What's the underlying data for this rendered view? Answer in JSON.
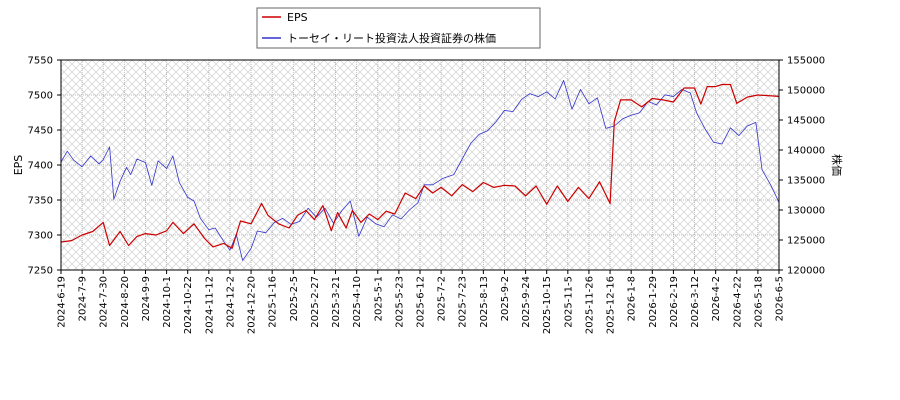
{
  "chart_data": {
    "type": "line",
    "grid": true,
    "legend_position": "top-left",
    "x_tick_labels": [
      "2024-6-19",
      "2024-7-9",
      "2024-7-30",
      "2024-8-20",
      "2024-9-9",
      "2024-10-1",
      "2024-10-22",
      "2024-11-12",
      "2024-12-2",
      "2024-12-20",
      "2025-1-16",
      "2025-2-5",
      "2025-2-27",
      "2025-3-21",
      "2025-4-10",
      "2025-5-1",
      "2025-5-23",
      "2025-6-12",
      "2025-7-2",
      "2025-7-23",
      "2025-8-13",
      "2025-9-2",
      "2025-9-24",
      "2025-10-15",
      "2025-11-5",
      "2025-11-26",
      "2025-12-16",
      "2026-1-8",
      "2026-1-29",
      "2026-2-19",
      "2026-3-12",
      "2026-4-2",
      "2026-4-22",
      "2026-5-18",
      "2026-6-5"
    ],
    "y_left": {
      "label": "EPS",
      "range": [
        7250,
        7550
      ],
      "ticks": [
        7250,
        7300,
        7350,
        7400,
        7450,
        7500,
        7550
      ]
    },
    "y_right": {
      "label": "株価",
      "range": [
        120000,
        155000
      ],
      "ticks": [
        120000,
        125000,
        130000,
        135000,
        140000,
        145000,
        150000,
        155000
      ]
    },
    "series": [
      {
        "name": "EPS",
        "color": "#cc0000",
        "axis": "left",
        "points": [
          [
            0,
            7290
          ],
          [
            0.5,
            7292
          ],
          [
            1,
            7300
          ],
          [
            1.5,
            7305
          ],
          [
            2,
            7318
          ],
          [
            2.3,
            7285
          ],
          [
            2.8,
            7305
          ],
          [
            3.2,
            7285
          ],
          [
            3.6,
            7298
          ],
          [
            4,
            7302
          ],
          [
            4.5,
            7300
          ],
          [
            5,
            7306
          ],
          [
            5.3,
            7318
          ],
          [
            5.8,
            7302
          ],
          [
            6.3,
            7316
          ],
          [
            6.8,
            7295
          ],
          [
            7.2,
            7283
          ],
          [
            7.7,
            7288
          ],
          [
            8.1,
            7281
          ],
          [
            8.5,
            7320
          ],
          [
            9,
            7316
          ],
          [
            9.5,
            7345
          ],
          [
            9.8,
            7328
          ],
          [
            10.3,
            7316
          ],
          [
            10.8,
            7310
          ],
          [
            11.2,
            7328
          ],
          [
            11.6,
            7335
          ],
          [
            12,
            7322
          ],
          [
            12.4,
            7342
          ],
          [
            12.8,
            7306
          ],
          [
            13.1,
            7332
          ],
          [
            13.5,
            7310
          ],
          [
            13.8,
            7335
          ],
          [
            14.2,
            7318
          ],
          [
            14.6,
            7330
          ],
          [
            15,
            7322
          ],
          [
            15.4,
            7334
          ],
          [
            15.8,
            7330
          ],
          [
            16.3,
            7360
          ],
          [
            16.8,
            7352
          ],
          [
            17.2,
            7370
          ],
          [
            17.6,
            7360
          ],
          [
            18,
            7368
          ],
          [
            18.5,
            7356
          ],
          [
            19,
            7372
          ],
          [
            19.5,
            7362
          ],
          [
            20,
            7375
          ],
          [
            20.5,
            7368
          ],
          [
            21,
            7371
          ],
          [
            21.5,
            7370
          ],
          [
            22,
            7356
          ],
          [
            22.5,
            7370
          ],
          [
            23,
            7344
          ],
          [
            23.5,
            7370
          ],
          [
            24,
            7348
          ],
          [
            24.5,
            7368
          ],
          [
            25,
            7352
          ],
          [
            25.5,
            7376
          ],
          [
            26,
            7345
          ],
          [
            26.2,
            7462
          ],
          [
            26.5,
            7493
          ],
          [
            27,
            7493
          ],
          [
            27.5,
            7483
          ],
          [
            28,
            7495
          ],
          [
            28.5,
            7493
          ],
          [
            29,
            7490
          ],
          [
            29.5,
            7510
          ],
          [
            30,
            7510
          ],
          [
            30.3,
            7487
          ],
          [
            30.6,
            7512
          ],
          [
            31,
            7512
          ],
          [
            31.3,
            7515
          ],
          [
            31.7,
            7515
          ],
          [
            32,
            7488
          ],
          [
            32.5,
            7497
          ],
          [
            33,
            7500
          ],
          [
            34,
            7498
          ],
          [
            34.6,
            7500
          ],
          [
            35,
            7497
          ]
        ]
      },
      {
        "name": "トーセイ・リート投資法人投資証券の株価",
        "color": "#3333cc",
        "axis": "right",
        "points": [
          [
            0,
            138000
          ],
          [
            0.3,
            139800
          ],
          [
            0.6,
            138300
          ],
          [
            1,
            137200
          ],
          [
            1.4,
            139000
          ],
          [
            1.8,
            137700
          ],
          [
            2,
            138400
          ],
          [
            2.3,
            140500
          ],
          [
            2.5,
            131800
          ],
          [
            2.8,
            134800
          ],
          [
            3.1,
            137100
          ],
          [
            3.3,
            135900
          ],
          [
            3.6,
            138500
          ],
          [
            4,
            137900
          ],
          [
            4.3,
            134100
          ],
          [
            4.6,
            138200
          ],
          [
            5,
            136900
          ],
          [
            5.3,
            139000
          ],
          [
            5.6,
            134600
          ],
          [
            6,
            132100
          ],
          [
            6.3,
            131500
          ],
          [
            6.6,
            128600
          ],
          [
            7,
            126700
          ],
          [
            7.3,
            127000
          ],
          [
            7.7,
            124800
          ],
          [
            8,
            123300
          ],
          [
            8.3,
            125900
          ],
          [
            8.6,
            121600
          ],
          [
            9,
            123600
          ],
          [
            9.3,
            126500
          ],
          [
            9.7,
            126200
          ],
          [
            10.1,
            127900
          ],
          [
            10.5,
            128600
          ],
          [
            10.9,
            127600
          ],
          [
            11.3,
            128100
          ],
          [
            11.7,
            130300
          ],
          [
            12.1,
            128800
          ],
          [
            12.5,
            130300
          ],
          [
            12.9,
            127800
          ],
          [
            13.3,
            129900
          ],
          [
            13.7,
            131500
          ],
          [
            14.1,
            125600
          ],
          [
            14.5,
            128800
          ],
          [
            14.9,
            127700
          ],
          [
            15.3,
            127200
          ],
          [
            15.7,
            129200
          ],
          [
            16.1,
            128500
          ],
          [
            16.5,
            130000
          ],
          [
            16.9,
            131200
          ],
          [
            17.2,
            134200
          ],
          [
            17.6,
            134200
          ],
          [
            18.1,
            135300
          ],
          [
            18.6,
            135900
          ],
          [
            19,
            138500
          ],
          [
            19.4,
            141100
          ],
          [
            19.8,
            142600
          ],
          [
            20.2,
            143200
          ],
          [
            20.6,
            144700
          ],
          [
            21,
            146600
          ],
          [
            21.4,
            146400
          ],
          [
            21.8,
            148400
          ],
          [
            22.2,
            149400
          ],
          [
            22.6,
            148900
          ],
          [
            23,
            149700
          ],
          [
            23.4,
            148500
          ],
          [
            23.8,
            151600
          ],
          [
            24.2,
            146800
          ],
          [
            24.6,
            150100
          ],
          [
            25,
            147700
          ],
          [
            25.4,
            148700
          ],
          [
            25.8,
            143600
          ],
          [
            26.2,
            144000
          ],
          [
            26.6,
            145200
          ],
          [
            27,
            145800
          ],
          [
            27.4,
            146200
          ],
          [
            27.8,
            148100
          ],
          [
            28.2,
            147500
          ],
          [
            28.6,
            149200
          ],
          [
            29,
            148900
          ],
          [
            29.4,
            150100
          ],
          [
            29.8,
            149500
          ],
          [
            30.1,
            146200
          ],
          [
            30.5,
            143500
          ],
          [
            30.9,
            141300
          ],
          [
            31.3,
            141000
          ],
          [
            31.7,
            143700
          ],
          [
            32.1,
            142400
          ],
          [
            32.5,
            144000
          ],
          [
            32.9,
            144600
          ],
          [
            33.2,
            136700
          ],
          [
            33.6,
            134200
          ],
          [
            34,
            131300
          ],
          [
            34.4,
            128100
          ],
          [
            34.7,
            125800
          ],
          [
            35,
            128800
          ]
        ]
      }
    ]
  }
}
